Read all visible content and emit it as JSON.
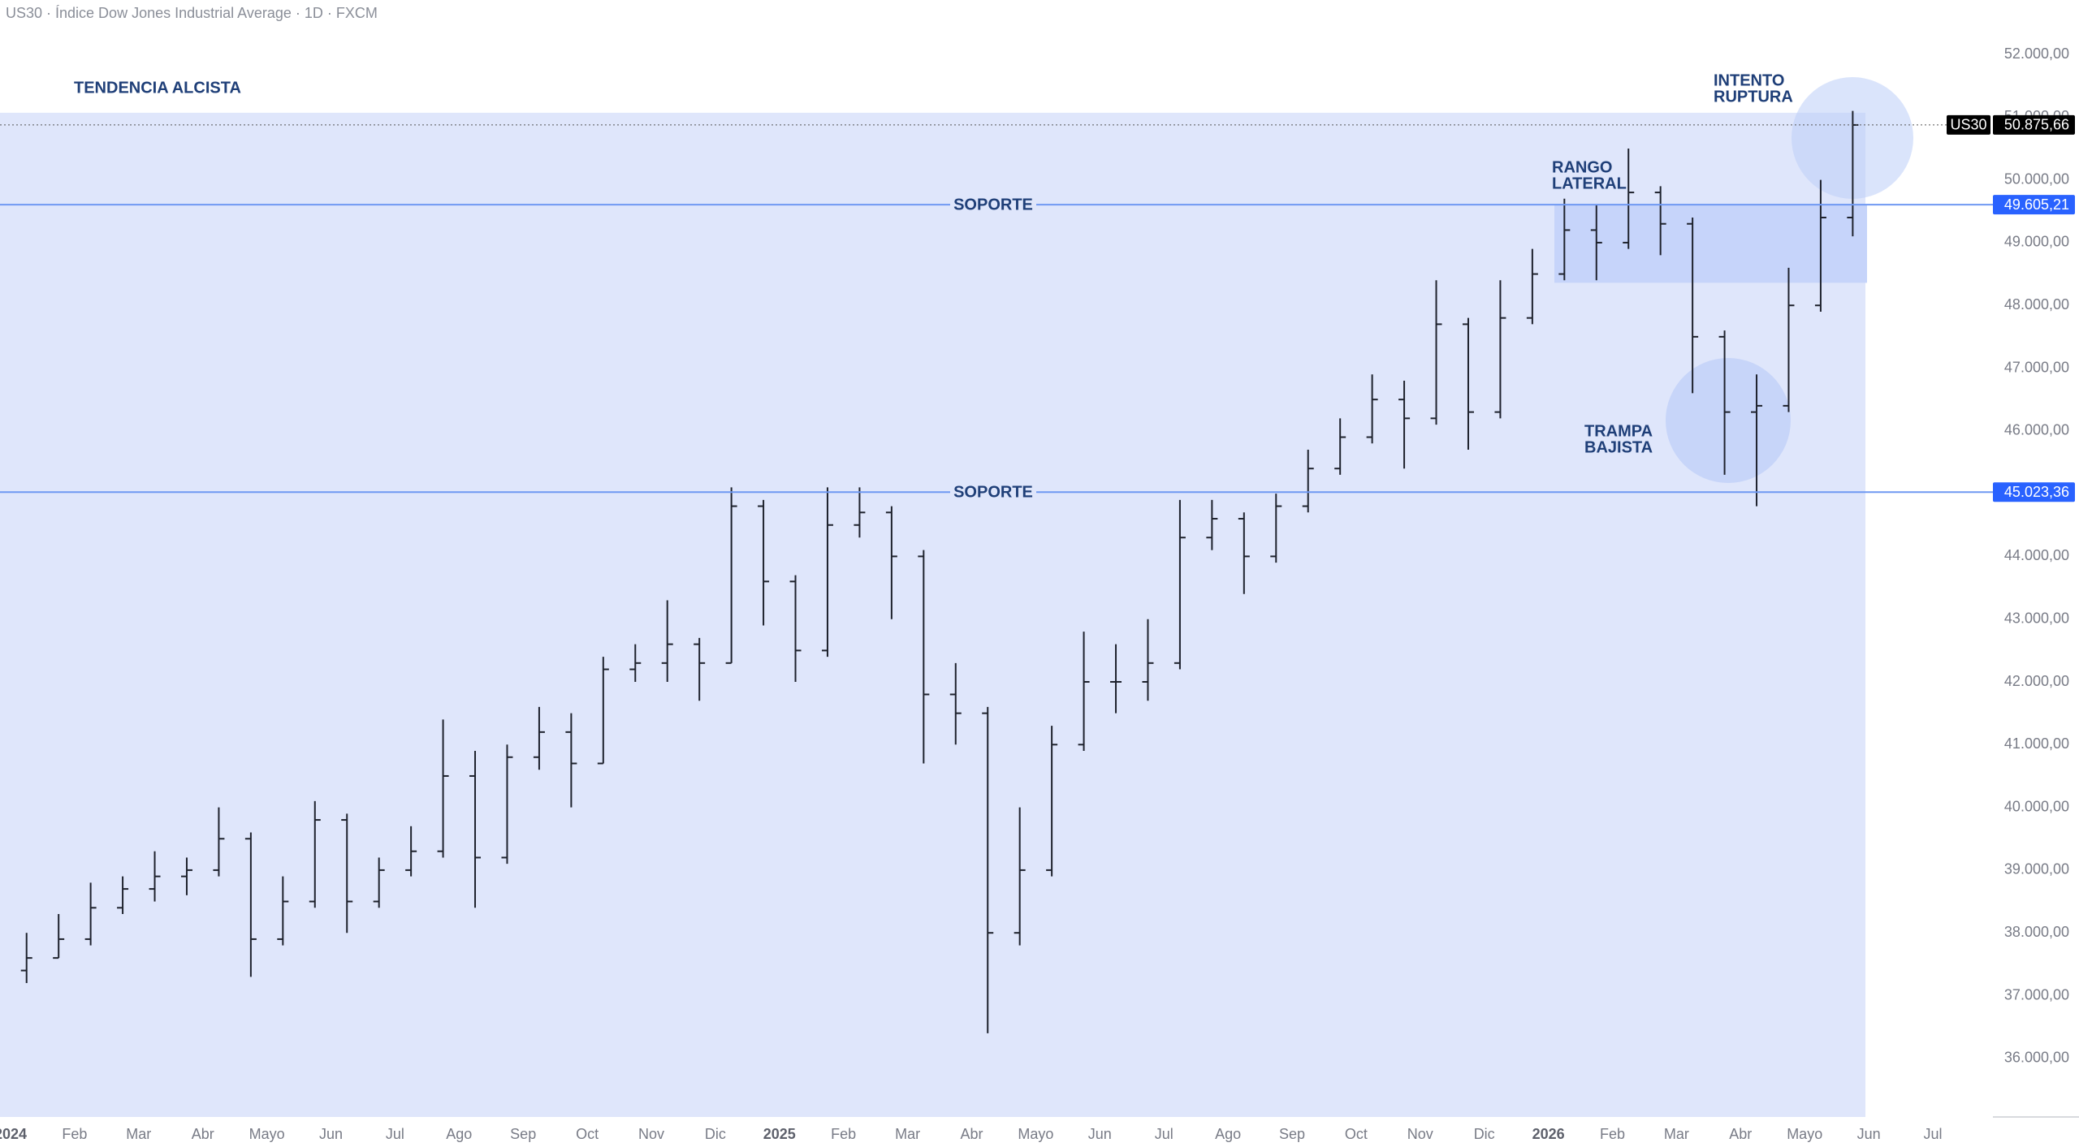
{
  "chart_data": {
    "type": "ohlc",
    "title": "US30 · Índice Dow Jones Industrial Average · 1D · FXCM",
    "categories": [
      "2024",
      null,
      "Feb",
      null,
      "Mar",
      null,
      "Abr",
      null,
      "Mayo",
      null,
      "Jun",
      null,
      "Jul",
      null,
      "Ago",
      null,
      "Sep",
      null,
      "Oct",
      null,
      "Nov",
      null,
      "Dic",
      null,
      "2025",
      null,
      "Feb",
      null,
      "Mar",
      null,
      "Abr",
      null,
      "Mayo",
      null,
      "Jun",
      null,
      "Jul",
      null,
      "Ago",
      null,
      "Sep",
      null,
      "Oct",
      null,
      "Nov",
      null,
      "Dic",
      null,
      "2026",
      null,
      "Feb",
      null,
      "Mar",
      null,
      "Abr",
      null,
      "Mayo",
      null,
      "Jun",
      null,
      "Jul",
      null
    ],
    "year_labels": [
      "2024",
      "2025",
      "2026"
    ],
    "open": [
      37400,
      37600,
      37900,
      38400,
      38700,
      38900,
      39000,
      39500,
      37900,
      38500,
      39800,
      38500,
      39000,
      39300,
      40500,
      39200,
      40800,
      41200,
      40700,
      42200,
      42300,
      42600,
      42300,
      44800,
      43600,
      42500,
      44500,
      44700,
      44000,
      41800,
      41500,
      38000,
      39000,
      41000,
      42000,
      42000,
      42300,
      44300,
      44600,
      44000,
      44800,
      45400,
      45900,
      46500,
      46200,
      47700,
      46300,
      47800,
      48500,
      49200,
      49000,
      49800,
      49300,
      47500,
      46300,
      46400,
      48000,
      49400,
      null,
      null,
      null,
      null
    ],
    "high": [
      38000,
      38300,
      38800,
      38900,
      39300,
      39200,
      40000,
      39600,
      38900,
      40100,
      39900,
      39200,
      39700,
      41400,
      40900,
      41000,
      41600,
      41500,
      42400,
      42600,
      43300,
      42700,
      45100,
      44900,
      43700,
      45100,
      45100,
      44800,
      44100,
      42300,
      41600,
      40000,
      41300,
      42800,
      42600,
      43000,
      44900,
      44900,
      44700,
      45000,
      45700,
      46200,
      46900,
      46800,
      48400,
      47800,
      48400,
      48900,
      49700,
      49600,
      50500,
      49900,
      49400,
      47600,
      46900,
      48600,
      50000,
      51100,
      null,
      null,
      null,
      null
    ],
    "low": [
      37200,
      37600,
      37800,
      38300,
      38500,
      38600,
      38900,
      37300,
      37800,
      38400,
      38000,
      38400,
      38900,
      39200,
      38400,
      39100,
      40600,
      40000,
      40700,
      42000,
      42000,
      41700,
      42300,
      42900,
      42000,
      42400,
      44300,
      43000,
      40700,
      41000,
      36400,
      37800,
      38900,
      40900,
      41500,
      41700,
      42200,
      44100,
      43400,
      43900,
      44700,
      45300,
      45800,
      45400,
      46100,
      45700,
      46200,
      47700,
      48400,
      48400,
      48900,
      48800,
      46600,
      45300,
      44800,
      46300,
      47900,
      49100,
      null,
      null,
      null,
      null
    ],
    "close": [
      37600,
      37900,
      38400,
      38700,
      38900,
      39000,
      39500,
      37900,
      38500,
      39800,
      38500,
      39000,
      39300,
      40500,
      39200,
      40800,
      41200,
      40700,
      42200,
      42300,
      42600,
      42300,
      44800,
      43600,
      42500,
      44500,
      44700,
      44000,
      41800,
      41500,
      38000,
      39000,
      41000,
      42000,
      42000,
      42300,
      44300,
      44600,
      44000,
      44800,
      45400,
      45900,
      46500,
      46200,
      47700,
      46300,
      47800,
      48500,
      49200,
      49000,
      49800,
      49300,
      47500,
      46300,
      46400,
      48000,
      49400,
      50875.66,
      null,
      null,
      null,
      null
    ],
    "color": "#1e222d",
    "ylim": [
      35066,
      52867
    ],
    "yticks": [
      {
        "value": 36000,
        "label": "36.000,00"
      },
      {
        "value": 37000,
        "label": "37.000,00"
      },
      {
        "value": 38000,
        "label": "38.000,00"
      },
      {
        "value": 39000,
        "label": "39.000,00"
      },
      {
        "value": 40000,
        "label": "40.000,00"
      },
      {
        "value": 41000,
        "label": "41.000,00"
      },
      {
        "value": 42000,
        "label": "42.000,00"
      },
      {
        "value": 43000,
        "label": "43.000,00"
      },
      {
        "value": 44000,
        "label": "44.000,00"
      },
      {
        "value": 45000,
        "label": "45.000,00"
      },
      {
        "value": 46000,
        "label": "46.000,00"
      },
      {
        "value": 47000,
        "label": "47.000,00"
      },
      {
        "value": 48000,
        "label": "48.000,00"
      },
      {
        "value": 49000,
        "label": "49.000,00"
      },
      {
        "value": 50000,
        "label": "50.000,00"
      },
      {
        "value": 51000,
        "label": "51.000,00"
      },
      {
        "value": 52000,
        "label": "52.000,00"
      }
    ],
    "zones": [
      {
        "low": 35066,
        "high": 51070,
        "color": "#dfe6fb"
      },
      {
        "low": 48360,
        "high": 49605.21,
        "color": "#c6d4fa"
      }
    ],
    "hlines": [
      {
        "value": 49605.21,
        "label": "49.605,21",
        "text": "SOPORTE",
        "color": "#6f98f2"
      },
      {
        "value": 45023.36,
        "label": "45.023,36",
        "text": "SOPORTE",
        "color": "#6f98f2"
      }
    ],
    "last_price": {
      "symbol": "US30",
      "value": 50875.66,
      "label": "50.875,66"
    },
    "annotations": [
      [
        "TENDENCIA ALCISTA"
      ],
      [
        "INTENTO",
        "RUPTURA"
      ],
      [
        "RANGO",
        "LATERAL"
      ],
      [
        "TRAMPA",
        "BAJISTA"
      ]
    ]
  }
}
